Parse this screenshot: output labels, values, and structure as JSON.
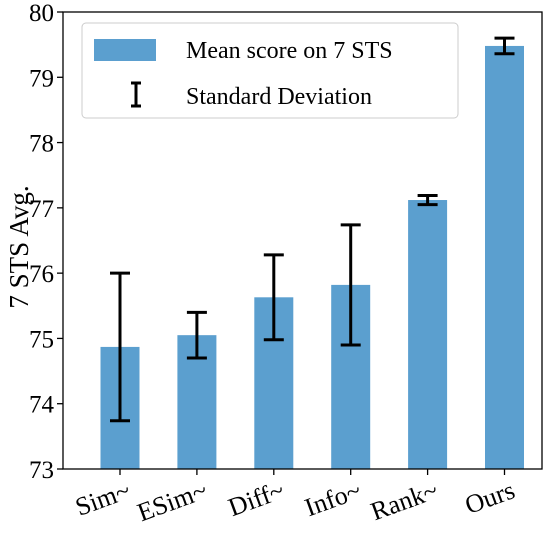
{
  "chart_data": {
    "type": "bar",
    "title": "",
    "xlabel": "",
    "ylabel": "7 STS Avg.",
    "categories": [
      "Sim~",
      "ESim~",
      "Diff~",
      "Info~",
      "Rank~",
      "Ours"
    ],
    "values": [
      74.87,
      75.05,
      75.63,
      75.82,
      77.12,
      79.48
    ],
    "error": [
      1.13,
      0.35,
      0.65,
      0.92,
      0.07,
      0.12
    ],
    "ylim": [
      73,
      80
    ],
    "yticks": [
      "73",
      "74",
      "75",
      "76",
      "77",
      "78",
      "79",
      "80"
    ],
    "grid": false,
    "legend": {
      "placement": "top-left",
      "entries": [
        "Mean score on 7 STS",
        "Standard Deviation"
      ]
    },
    "colors": {
      "bar": "#5b9fcf",
      "error": "#000000"
    }
  }
}
